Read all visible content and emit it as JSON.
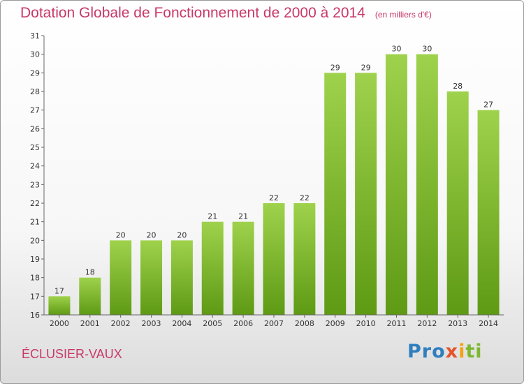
{
  "header": {
    "title": "Dotation Globale de Fonctionnement de 2000 à 2014",
    "unit": "(en milliers d'€)"
  },
  "commune": "ÉCLUSIER-VAUX",
  "logo": {
    "text": "Proxiti",
    "colors": [
      "#2f7fbf",
      "#e5532a",
      "#f2a215",
      "#7cb82f"
    ]
  },
  "chart_data": {
    "type": "bar",
    "title": "Dotation Globale de Fonctionnement de 2000 à 2014",
    "subtitle": "(en milliers d'€)",
    "xlabel": "",
    "ylabel": "",
    "categories": [
      "2000",
      "2001",
      "2002",
      "2003",
      "2004",
      "2005",
      "2006",
      "2007",
      "2008",
      "2009",
      "2010",
      "2011",
      "2012",
      "2013",
      "2014"
    ],
    "values": [
      17,
      18,
      20,
      20,
      20,
      21,
      21,
      22,
      22,
      29,
      29,
      30,
      30,
      28,
      27
    ],
    "ylim": [
      16,
      31
    ],
    "yticks": [
      16,
      17,
      18,
      19,
      20,
      21,
      22,
      23,
      24,
      25,
      26,
      27,
      28,
      29,
      30,
      31
    ],
    "grid": false,
    "bar_color": "#7db832",
    "title_color": "#c8386a"
  }
}
